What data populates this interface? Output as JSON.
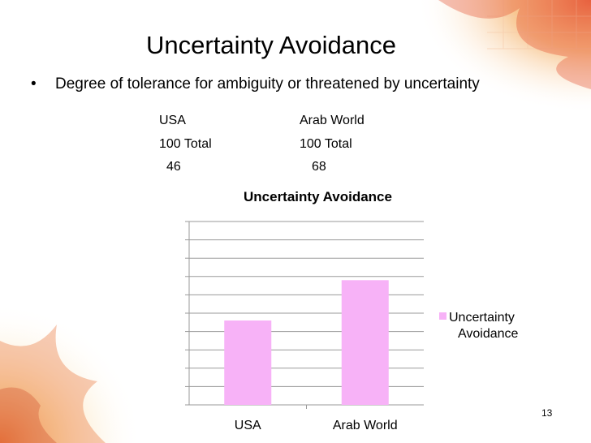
{
  "slide": {
    "title": "Uncertainty Avoidance",
    "bullet_symbol": "•",
    "bullet": "Degree of tolerance for ambiguity or threatened by uncertainty",
    "slide_number": "13"
  },
  "stats": {
    "usa": {
      "name": "USA",
      "scale": "100 Total",
      "score": "46"
    },
    "arab": {
      "name": "Arab World",
      "scale": "100 Total",
      "score": "68"
    }
  },
  "chart_data": {
    "type": "bar",
    "title": "Uncertainty Avoidance",
    "categories": [
      "USA",
      "Arab World"
    ],
    "series": [
      {
        "name": "Uncertainty Avoidance",
        "values": [
          46,
          68
        ],
        "color": "#f7b2f7"
      }
    ],
    "ylim": [
      0,
      100
    ],
    "grid": true,
    "legend_position": "right",
    "legend_lines": [
      "Uncertainty",
      "Avoidance"
    ]
  }
}
